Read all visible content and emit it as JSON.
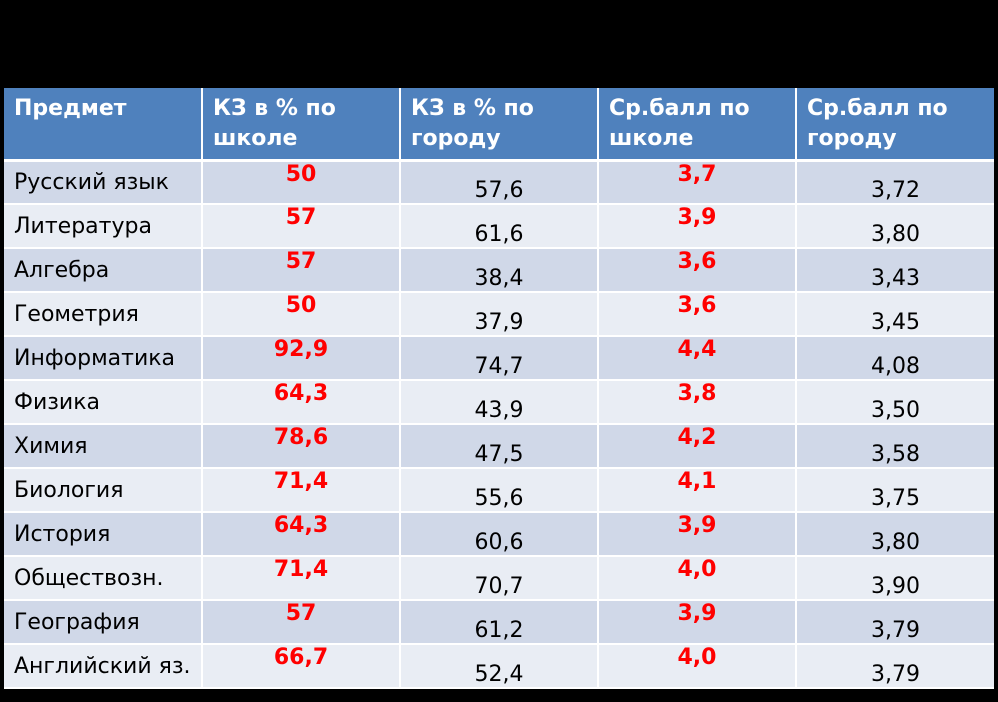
{
  "table": {
    "headers": [
      "Предмет",
      "КЗ в % по школе",
      "КЗ в % по городу",
      "Ср.балл по школе",
      "Ср.балл по городу"
    ],
    "rows": [
      {
        "subject": "Русский язык",
        "kz_school": "50",
        "kz_city": "57,6",
        "avg_school": "3,7",
        "avg_city": "3,72"
      },
      {
        "subject": "Литература",
        "kz_school": "57",
        "kz_city": "61,6",
        "avg_school": "3,9",
        "avg_city": "3,80"
      },
      {
        "subject": "Алгебра",
        "kz_school": "57",
        "kz_city": "38,4",
        "avg_school": "3,6",
        "avg_city": "3,43"
      },
      {
        "subject": "Геометрия",
        "kz_school": "50",
        "kz_city": "37,9",
        "avg_school": "3,6",
        "avg_city": "3,45"
      },
      {
        "subject": "Информатика",
        "kz_school": "92,9",
        "kz_city": "74,7",
        "avg_school": "4,4",
        "avg_city": "4,08"
      },
      {
        "subject": "Физика",
        "kz_school": "64,3",
        "kz_city": "43,9",
        "avg_school": "3,8",
        "avg_city": "3,50"
      },
      {
        "subject": "Химия",
        "kz_school": "78,6",
        "kz_city": "47,5",
        "avg_school": "4,2",
        "avg_city": "3,58"
      },
      {
        "subject": "Биология",
        "kz_school": "71,4",
        "kz_city": "55,6",
        "avg_school": "4,1",
        "avg_city": "3,75"
      },
      {
        "subject": "История",
        "kz_school": "64,3",
        "kz_city": "60,6",
        "avg_school": "3,9",
        "avg_city": "3,80"
      },
      {
        "subject": "Обществозн.",
        "kz_school": "71,4",
        "kz_city": "70,7",
        "avg_school": "4,0",
        "avg_city": "3,90"
      },
      {
        "subject": "География",
        "kz_school": "57",
        "kz_city": "61,2",
        "avg_school": "3,9",
        "avg_city": "3,79"
      },
      {
        "subject": "Английский яз.",
        "kz_school": "66,7",
        "kz_city": "52,4",
        "avg_school": "4,0",
        "avg_city": "3,79"
      }
    ]
  },
  "colors": {
    "header_bg": "#4F81BD",
    "row_odd_bg": "#D0D8E8",
    "row_even_bg": "#E9EDF4",
    "school_value": "#FF0000",
    "background": "#000000"
  }
}
